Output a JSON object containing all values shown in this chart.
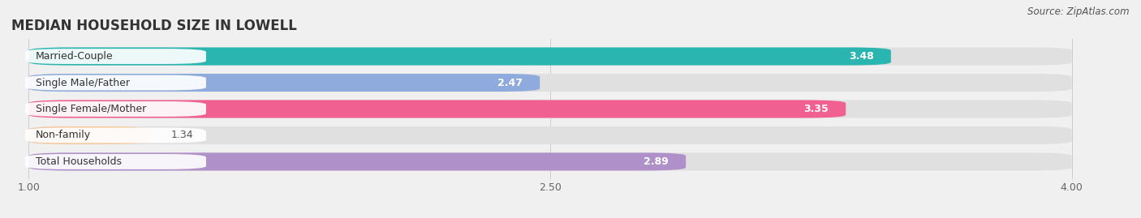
{
  "title": "MEDIAN HOUSEHOLD SIZE IN LOWELL",
  "source": "Source: ZipAtlas.com",
  "categories": [
    "Married-Couple",
    "Single Male/Father",
    "Single Female/Mother",
    "Non-family",
    "Total Households"
  ],
  "values": [
    3.48,
    2.47,
    3.35,
    1.34,
    2.89
  ],
  "bar_colors": [
    "#2ab5b0",
    "#8faadc",
    "#f06090",
    "#f5c9a0",
    "#b090c8"
  ],
  "xlim_min": 1.0,
  "xlim_max": 4.0,
  "xticks": [
    1.0,
    2.5,
    4.0
  ],
  "background_color": "#f0f0f0",
  "bar_bg_color": "#e8e8e8",
  "title_fontsize": 12,
  "label_fontsize": 9,
  "value_fontsize": 9,
  "source_fontsize": 8.5
}
